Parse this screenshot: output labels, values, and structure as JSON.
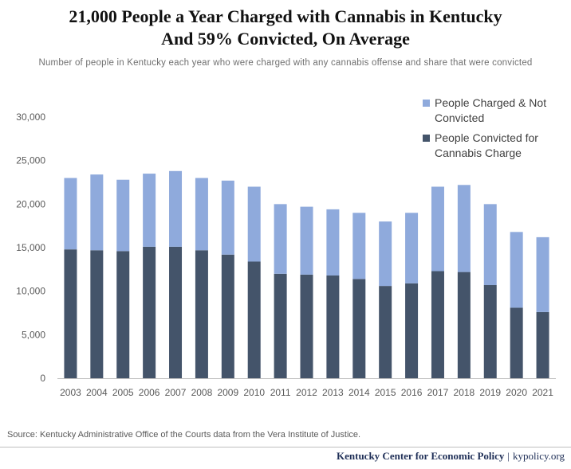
{
  "header": {
    "title_line1": "21,000 People a Year Charged with Cannabis in Kentucky",
    "title_line2": "And 59% Convicted, On Average",
    "subtitle": "Number of people in Kentucky each year who were charged with any cannabis offense and share that were convicted"
  },
  "footnote": {
    "source": "Source: Kentucky Administrative Office of the Courts data from the Vera Institute of Justice."
  },
  "footer": {
    "org": "Kentucky Center for Economic Policy",
    "separator": "|",
    "site": "kypolicy.org"
  },
  "colors": {
    "convicted": "#44546a",
    "not_convicted": "#8faadc",
    "axis": "#bfbfbf"
  },
  "chart_data": {
    "type": "bar",
    "stacked": true,
    "categories": [
      "2003",
      "2004",
      "2005",
      "2006",
      "2007",
      "2008",
      "2009",
      "2010",
      "2011",
      "2012",
      "2013",
      "2014",
      "2015",
      "2016",
      "2017",
      "2018",
      "2019",
      "2020",
      "2021"
    ],
    "series": [
      {
        "name": "People Convicted for Cannabis Charge",
        "color": "#44546a",
        "values": [
          14800,
          14700,
          14600,
          15100,
          15100,
          14700,
          14200,
          13400,
          12000,
          11900,
          11800,
          11400,
          10600,
          10900,
          12300,
          12200,
          10700,
          8100,
          7600
        ]
      },
      {
        "name": "People Charged & Not Convicted",
        "color": "#8faadc",
        "values": [
          8200,
          8700,
          8200,
          8400,
          8700,
          8300,
          8500,
          8600,
          8000,
          7800,
          7600,
          7600,
          7400,
          8100,
          9700,
          10000,
          9300,
          8700,
          8600
        ]
      }
    ],
    "ylim": [
      0,
      30000
    ],
    "yticks": [
      0,
      5000,
      10000,
      15000,
      20000,
      25000,
      30000
    ],
    "ytick_labels": [
      "0",
      "5,000",
      "10,000",
      "15,000",
      "20,000",
      "25,000",
      "30,000"
    ],
    "grid": false,
    "legend": {
      "position": "top-right",
      "entries": [
        {
          "series": 1,
          "lines": [
            "People Charged & Not",
            "Convicted"
          ]
        },
        {
          "series": 0,
          "lines": [
            "People Convicted for",
            "Cannabis Charge"
          ]
        }
      ]
    }
  }
}
